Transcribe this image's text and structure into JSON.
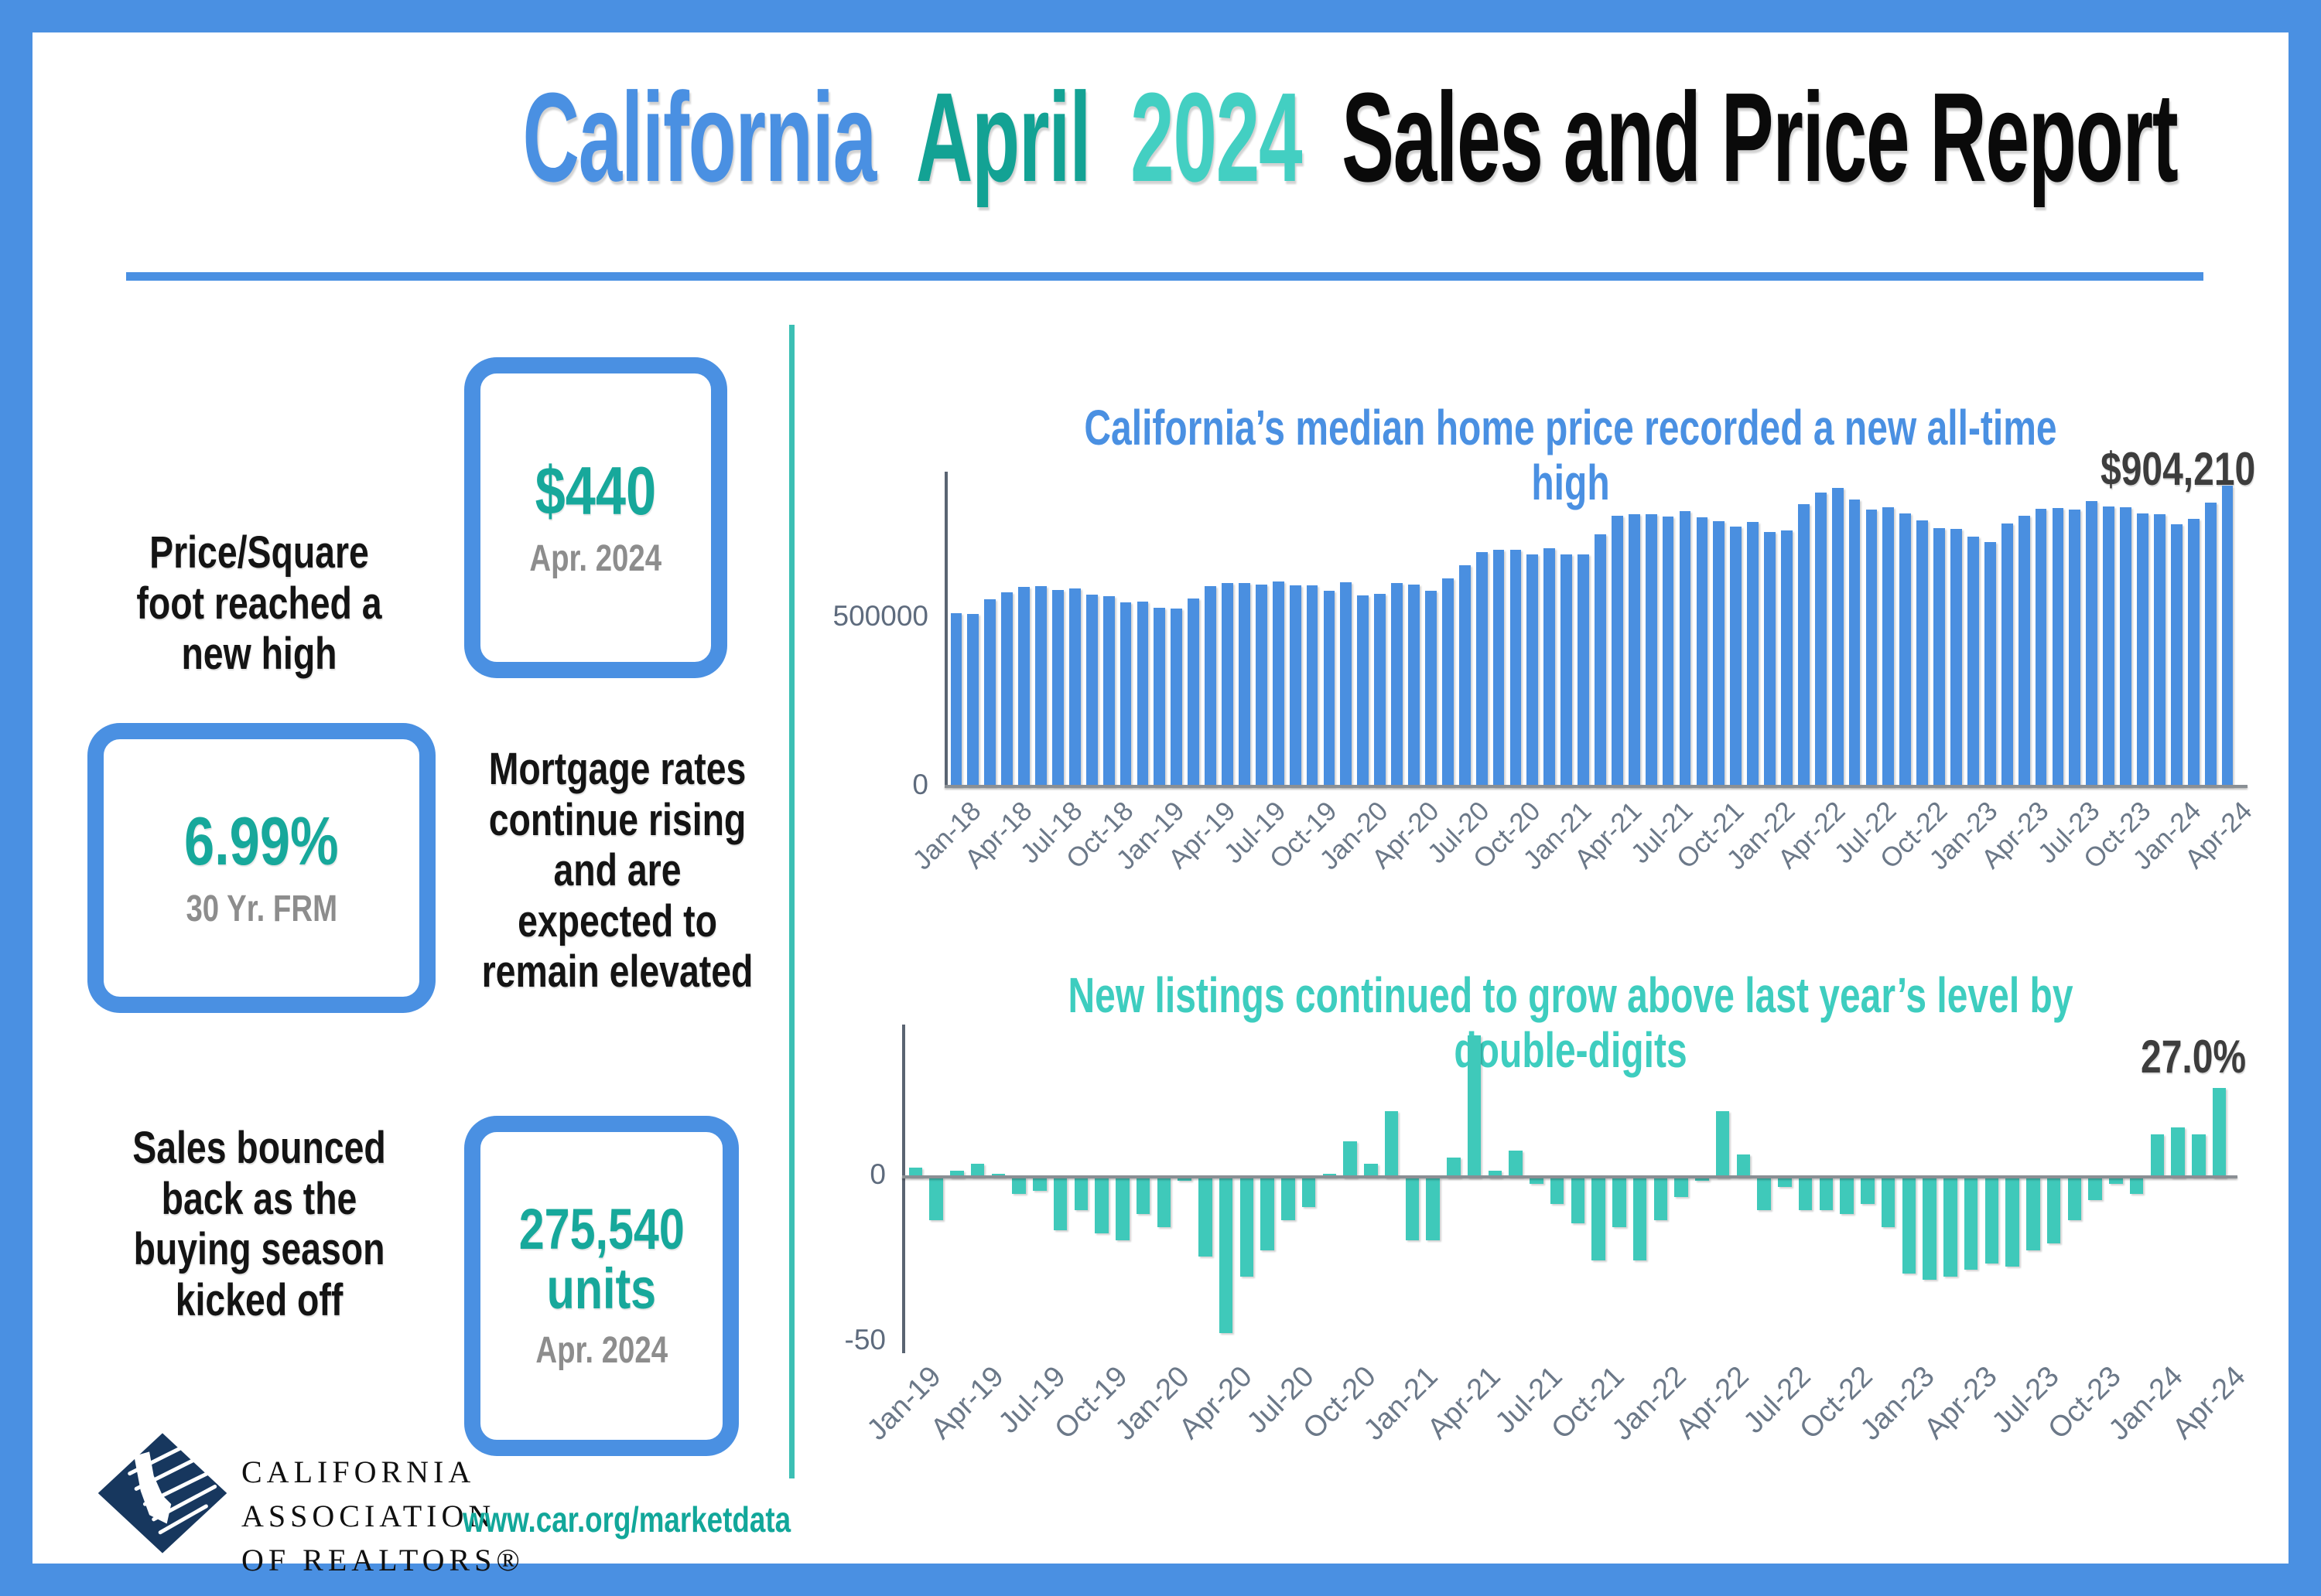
{
  "colors": {
    "frame_blue": "#4a90e2",
    "title_blue": "#4a90e2",
    "title_teal_dark": "#13a294",
    "title_teal_light": "#43cfc2",
    "stat_teal": "#17a89b",
    "divider_teal": "#3cbfb4",
    "gray_sub": "#8d8d8d"
  },
  "header": {
    "title_parts": [
      {
        "text": "California",
        "color": "#4a90e2"
      },
      {
        "text": "April",
        "color": "#13a294"
      },
      {
        "text": "2024",
        "color": "#43cfc2"
      },
      {
        "text": "Sales and Price Report",
        "color": "#0a0a0a"
      }
    ]
  },
  "stats": [
    {
      "label": "Price/Square foot reached a new high",
      "value": "$440",
      "sub": "Apr. 2024"
    },
    {
      "label": "Mortgage rates continue rising and are expected to remain elevated",
      "value": "6.99%",
      "sub": "30 Yr. FRM"
    },
    {
      "label": "Sales bounced back as the buying season kicked off",
      "value": "275,540",
      "value2": "units",
      "sub": "Apr. 2024"
    }
  ],
  "footer": {
    "logo_lines": [
      "CALIFORNIA",
      "ASSOCIATION",
      "OF REALTORS®"
    ],
    "url": "www.car.org/marketdata"
  },
  "chart_data": [
    {
      "type": "bar",
      "title": "California’s median home price recorded a new all-time high",
      "annotation": "$904,210",
      "bar_color": "#4a8fe0",
      "ylim": [
        0,
        928000
      ],
      "grid": false,
      "legend": "none",
      "y_ticks": [
        {
          "value": 500000,
          "label": "500000"
        },
        {
          "value": 0,
          "label": "0"
        }
      ],
      "tick_every": 3,
      "x": [
        "Jan-18",
        "Feb-18",
        "Mar-18",
        "Apr-18",
        "May-18",
        "Jun-18",
        "Jul-18",
        "Aug-18",
        "Sep-18",
        "Oct-18",
        "Nov-18",
        "Dec-18",
        "Jan-19",
        "Feb-19",
        "Mar-19",
        "Apr-19",
        "May-19",
        "Jun-19",
        "Jul-19",
        "Aug-19",
        "Sep-19",
        "Oct-19",
        "Nov-19",
        "Dec-19",
        "Jan-20",
        "Feb-20",
        "Mar-20",
        "Apr-20",
        "May-20",
        "Jun-20",
        "Jul-20",
        "Aug-20",
        "Sep-20",
        "Oct-20",
        "Nov-20",
        "Dec-20",
        "Jan-21",
        "Feb-21",
        "Mar-21",
        "Apr-21",
        "May-21",
        "Jun-21",
        "Jul-21",
        "Aug-21",
        "Sep-21",
        "Oct-21",
        "Nov-21",
        "Dec-21",
        "Jan-22",
        "Feb-22",
        "Mar-22",
        "Apr-22",
        "May-22",
        "Jun-22",
        "Jul-22",
        "Aug-22",
        "Sep-22",
        "Oct-22",
        "Nov-22",
        "Dec-22",
        "Jan-23",
        "Feb-23",
        "Mar-23",
        "Apr-23",
        "May-23",
        "Jun-23",
        "Jul-23",
        "Aug-23",
        "Sep-23",
        "Oct-23",
        "Nov-23",
        "Dec-23",
        "Jan-24",
        "Feb-24",
        "Mar-24",
        "Apr-24"
      ],
      "values": [
        522000,
        518000,
        564000,
        584000,
        600000,
        602000,
        591000,
        596000,
        578000,
        572000,
        554000,
        557000,
        538000,
        535000,
        565000,
        602000,
        611000,
        611000,
        607000,
        617000,
        605000,
        605000,
        589000,
        615000,
        575000,
        579000,
        612000,
        606000,
        588000,
        626000,
        666000,
        706000,
        712000,
        711000,
        699000,
        717000,
        699000,
        699000,
        759000,
        814000,
        819000,
        819000,
        811000,
        827000,
        809000,
        798000,
        782000,
        796000,
        765000,
        771000,
        849000,
        884000,
        898000,
        863000,
        833000,
        839000,
        821000,
        801000,
        777000,
        774000,
        751000,
        735000,
        791000,
        815000,
        836000,
        838000,
        832000,
        859000,
        843000,
        840000,
        822000,
        819000,
        788000,
        806000,
        854000,
        904210
      ]
    },
    {
      "type": "bar",
      "title": "New listings continued to grow above last year’s level by\ndouble-digits",
      "annotation": "27.0%",
      "bar_color": "#3fc9ba",
      "ylim": [
        -52,
        45
      ],
      "grid": false,
      "legend": "none",
      "y_ticks": [
        {
          "value": 0,
          "label": "0"
        },
        {
          "value": -50,
          "label": "-50"
        }
      ],
      "tick_every": 3,
      "x": [
        "Jan-19",
        "Feb-19",
        "Mar-19",
        "Apr-19",
        "May-19",
        "Jun-19",
        "Jul-19",
        "Aug-19",
        "Sep-19",
        "Oct-19",
        "Nov-19",
        "Dec-19",
        "Jan-20",
        "Feb-20",
        "Mar-20",
        "Apr-20",
        "May-20",
        "Jun-20",
        "Jul-20",
        "Aug-20",
        "Sep-20",
        "Oct-20",
        "Nov-20",
        "Dec-20",
        "Jan-21",
        "Feb-21",
        "Mar-21",
        "Apr-21",
        "May-21",
        "Jun-21",
        "Jul-21",
        "Aug-21",
        "Sep-21",
        "Oct-21",
        "Nov-21",
        "Dec-21",
        "Jan-22",
        "Feb-22",
        "Mar-22",
        "Apr-22",
        "May-22",
        "Jun-22",
        "Jul-22",
        "Aug-22",
        "Sep-22",
        "Oct-22",
        "Nov-22",
        "Dec-22",
        "Jan-23",
        "Feb-23",
        "Mar-23",
        "Apr-23",
        "May-23",
        "Jun-23",
        "Jul-23",
        "Aug-23",
        "Sep-23",
        "Oct-23",
        "Nov-23",
        "Dec-23",
        "Jan-24",
        "Feb-24",
        "Mar-24",
        "Apr-24"
      ],
      "values": [
        3,
        -13,
        2,
        4,
        1,
        -5,
        -4,
        -16,
        -10,
        -17,
        -19,
        -11,
        -15,
        -1,
        -24,
        -47,
        -30,
        -22,
        -13,
        -9,
        1,
        11,
        4,
        20,
        -19,
        -19,
        6,
        43,
        2,
        8,
        -2,
        -8,
        -14,
        -25,
        -15,
        -25,
        -13,
        -6,
        -1,
        20,
        7,
        -10,
        -3,
        -10,
        -10,
        -11,
        -8,
        -15,
        -29,
        -31,
        -30,
        -28,
        -26,
        -27,
        -22,
        -20,
        -13,
        -7,
        -2,
        -5,
        13,
        15,
        13,
        27
      ]
    }
  ]
}
